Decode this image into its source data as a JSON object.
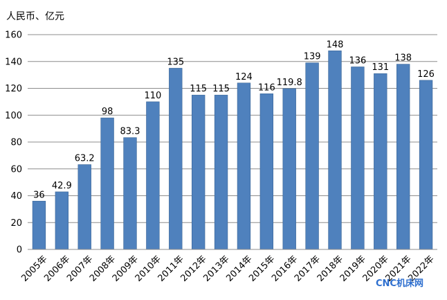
{
  "chart_data": {
    "type": "bar",
    "unit_label": "人民币、亿元",
    "categories": [
      "2005年",
      "2006年",
      "2007年",
      "2008年",
      "2009年",
      "2010年",
      "2011年",
      "2012年",
      "2013年",
      "2014年",
      "2015年",
      "2016年",
      "2017年",
      "2018年",
      "2019年",
      "2020年",
      "2021年",
      "2022年"
    ],
    "values": [
      36,
      42.9,
      63.2,
      98,
      83.3,
      110,
      135,
      115,
      115,
      124,
      116,
      119.8,
      139,
      148,
      136,
      131,
      138,
      126
    ],
    "data_labels": [
      "36",
      "42.9",
      "63.2",
      "98",
      "83.3",
      "110",
      "135",
      "115",
      "115",
      "124",
      "116",
      "119.8",
      "139",
      "148",
      "136",
      "131",
      "138",
      "126"
    ],
    "ylim": [
      0,
      160
    ],
    "yticks": [
      0,
      20,
      40,
      60,
      80,
      100,
      120,
      140,
      160
    ],
    "grid": true,
    "bar_color": "#4f81bd",
    "bar_edge_color": "#3a6596"
  },
  "watermark": {
    "text": "CNC机床网",
    "color": "#2e6fcf"
  }
}
